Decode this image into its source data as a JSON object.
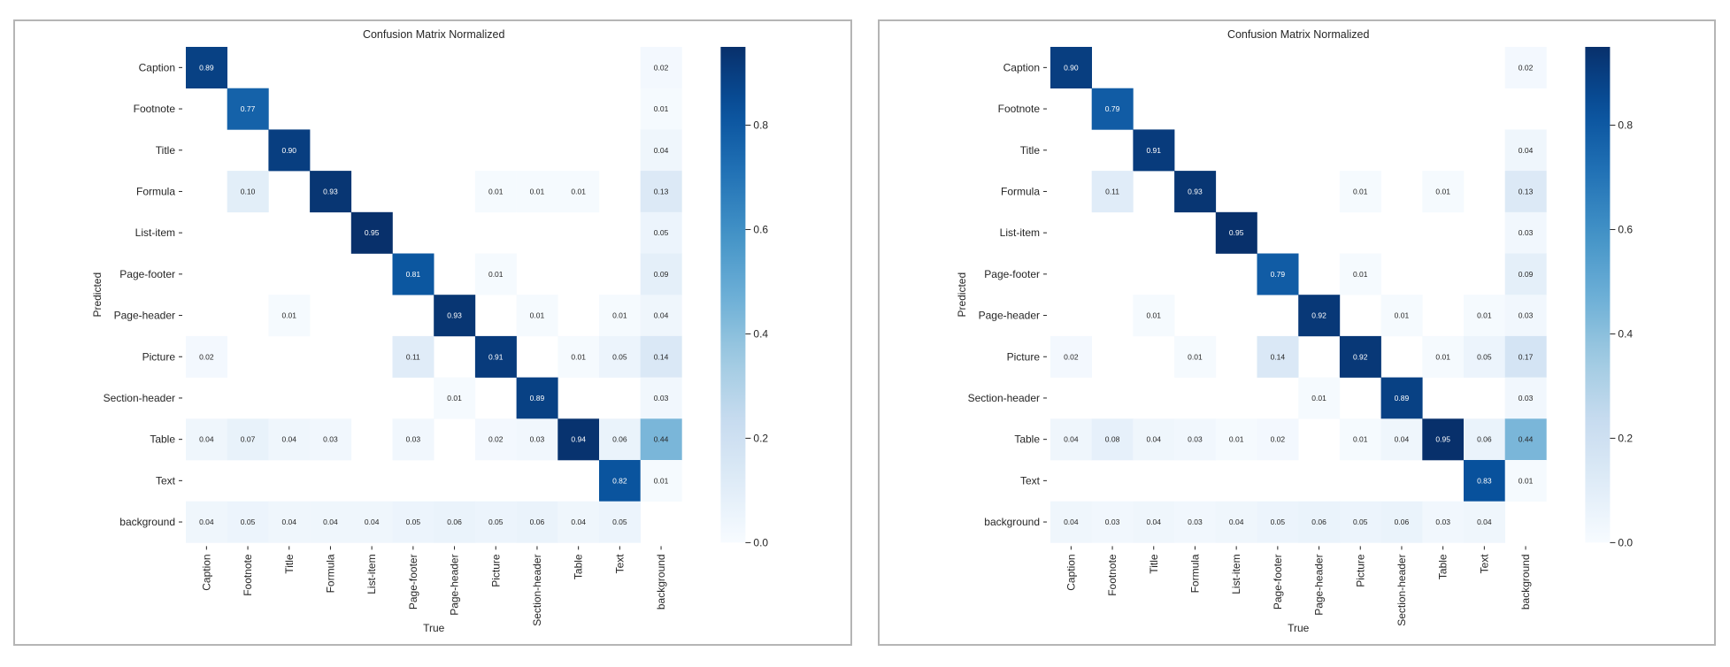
{
  "chart_data": [
    {
      "type": "heatmap",
      "title": "Confusion Matrix Normalized",
      "xlabel": "True",
      "ylabel": "Predicted",
      "x_categories": [
        "Caption",
        "Footnote",
        "Title",
        "Formula",
        "List-item",
        "Page-footer",
        "Page-header",
        "Picture",
        "Section-header",
        "Table",
        "Text",
        "background"
      ],
      "y_categories": [
        "Caption",
        "Footnote",
        "Title",
        "Formula",
        "List-item",
        "Page-footer",
        "Page-header",
        "Picture",
        "Section-header",
        "Table",
        "Text",
        "background"
      ],
      "colormap": "Blues",
      "color_range": [
        0.0,
        0.95
      ],
      "colorbar_ticks": [
        "0.0",
        "0.2",
        "0.4",
        "0.6",
        "0.8"
      ],
      "values": [
        [
          0.89,
          null,
          null,
          null,
          null,
          null,
          null,
          null,
          null,
          null,
          null,
          0.02
        ],
        [
          null,
          0.77,
          null,
          null,
          null,
          null,
          null,
          null,
          null,
          null,
          null,
          0.01
        ],
        [
          null,
          null,
          0.9,
          null,
          null,
          null,
          null,
          null,
          null,
          null,
          null,
          0.04
        ],
        [
          null,
          0.1,
          null,
          0.93,
          null,
          null,
          null,
          0.01,
          0.01,
          0.01,
          null,
          0.13
        ],
        [
          null,
          null,
          null,
          null,
          0.95,
          null,
          null,
          null,
          null,
          null,
          null,
          0.05
        ],
        [
          null,
          null,
          null,
          null,
          null,
          0.81,
          null,
          0.01,
          null,
          null,
          null,
          0.09
        ],
        [
          null,
          null,
          0.01,
          null,
          null,
          null,
          0.93,
          null,
          0.01,
          null,
          0.01,
          0.04
        ],
        [
          0.02,
          null,
          null,
          null,
          null,
          0.11,
          null,
          0.91,
          null,
          0.01,
          0.05,
          0.14
        ],
        [
          null,
          null,
          null,
          null,
          null,
          null,
          0.01,
          null,
          0.89,
          null,
          null,
          0.03
        ],
        [
          0.04,
          0.07,
          0.04,
          0.03,
          null,
          0.03,
          null,
          0.02,
          0.03,
          0.94,
          0.06,
          0.44
        ],
        [
          null,
          null,
          null,
          null,
          null,
          null,
          null,
          null,
          null,
          null,
          0.82,
          0.01
        ],
        [
          0.04,
          0.05,
          0.04,
          0.04,
          0.04,
          0.05,
          0.06,
          0.05,
          0.06,
          0.04,
          0.05,
          null
        ]
      ]
    },
    {
      "type": "heatmap",
      "title": "Confusion Matrix Normalized",
      "xlabel": "True",
      "ylabel": "Predicted",
      "x_categories": [
        "Caption",
        "Footnote",
        "Title",
        "Formula",
        "List-item",
        "Page-footer",
        "Page-header",
        "Picture",
        "Section-header",
        "Table",
        "Text",
        "background"
      ],
      "y_categories": [
        "Caption",
        "Footnote",
        "Title",
        "Formula",
        "List-item",
        "Page-footer",
        "Page-header",
        "Picture",
        "Section-header",
        "Table",
        "Text",
        "background"
      ],
      "colormap": "Blues",
      "color_range": [
        0.0,
        0.95
      ],
      "colorbar_ticks": [
        "0.0",
        "0.2",
        "0.4",
        "0.6",
        "0.8"
      ],
      "values": [
        [
          0.9,
          null,
          null,
          null,
          null,
          null,
          null,
          null,
          null,
          null,
          null,
          0.02
        ],
        [
          null,
          0.79,
          null,
          null,
          null,
          null,
          null,
          null,
          null,
          null,
          null,
          null
        ],
        [
          null,
          null,
          0.91,
          null,
          null,
          null,
          null,
          null,
          null,
          null,
          null,
          0.04
        ],
        [
          null,
          0.11,
          null,
          0.93,
          null,
          null,
          null,
          0.01,
          null,
          0.01,
          null,
          0.13
        ],
        [
          null,
          null,
          null,
          null,
          0.95,
          null,
          null,
          null,
          null,
          null,
          null,
          0.03
        ],
        [
          null,
          null,
          null,
          null,
          null,
          0.79,
          null,
          0.01,
          null,
          null,
          null,
          0.09
        ],
        [
          null,
          null,
          0.01,
          null,
          null,
          null,
          0.92,
          null,
          0.01,
          null,
          0.01,
          0.03
        ],
        [
          0.02,
          null,
          null,
          0.01,
          null,
          0.14,
          null,
          0.92,
          null,
          0.01,
          0.05,
          0.17
        ],
        [
          null,
          null,
          null,
          null,
          null,
          null,
          0.01,
          null,
          0.89,
          null,
          null,
          0.03
        ],
        [
          0.04,
          0.08,
          0.04,
          0.03,
          0.01,
          0.02,
          null,
          0.01,
          0.04,
          0.95,
          0.06,
          0.44
        ],
        [
          null,
          null,
          null,
          null,
          null,
          null,
          null,
          null,
          null,
          null,
          0.83,
          0.01
        ],
        [
          0.04,
          0.03,
          0.04,
          0.03,
          0.04,
          0.05,
          0.06,
          0.05,
          0.06,
          0.03,
          0.04,
          null
        ]
      ]
    }
  ]
}
